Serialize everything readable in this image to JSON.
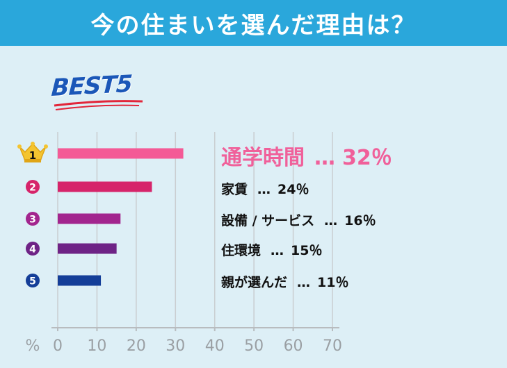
{
  "header": {
    "title": "今の住まいを選んだ理由は？"
  },
  "badge": {
    "text": "BEST5"
  },
  "colors": {
    "header_bg": "#2aa7db",
    "background": "#ddeff6",
    "rank1": "#f45a96",
    "rank2": "#d6246a",
    "rank3": "#a2258e",
    "rank4": "#6e2386",
    "rank5": "#143e98",
    "crown": "#f4c430"
  },
  "items": [
    {
      "rank": "1",
      "label": "通学時間",
      "dots": "…",
      "value_text": "32％"
    },
    {
      "rank": "2",
      "label": "家賃",
      "dots": "…",
      "value_text": "24％"
    },
    {
      "rank": "3",
      "label": "設備 / サービス",
      "dots": "…",
      "value_text": "16％"
    },
    {
      "rank": "4",
      "label": "住環境",
      "dots": "…",
      "value_text": "15％"
    },
    {
      "rank": "5",
      "label": "親が選んだ",
      "dots": "…",
      "value_text": "11％"
    }
  ],
  "chart_data": {
    "type": "bar",
    "orientation": "horizontal",
    "categories": [
      "通学時間",
      "家賃",
      "設備 / サービス",
      "住環境",
      "親が選んだ"
    ],
    "values": [
      32,
      24,
      16,
      15,
      11
    ],
    "xlim": [
      0,
      70
    ],
    "xticks": [
      "0",
      "10",
      "20",
      "30",
      "40",
      "50",
      "60",
      "70"
    ],
    "xlabel": "%",
    "grid": true
  }
}
